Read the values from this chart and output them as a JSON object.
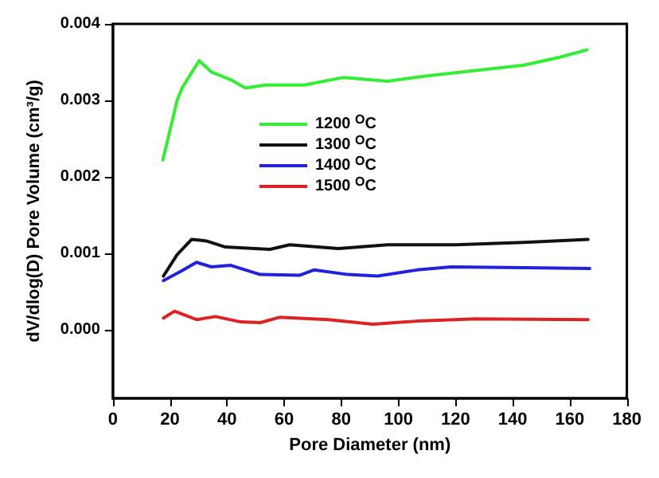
{
  "chart_data": {
    "type": "line",
    "xlabel": "Pore Diameter (nm)",
    "ylabel": "dV/dlog(D) Pore Volume (cm³/g)",
    "xlim": [
      0,
      180
    ],
    "xticks": [
      0,
      20,
      40,
      60,
      80,
      100,
      120,
      140,
      160,
      180
    ],
    "ylim": [
      -0.0009,
      0.004
    ],
    "yticks": [
      {
        "value": 0,
        "label": "0.000"
      },
      {
        "value": 0.001,
        "label": "0.001"
      },
      {
        "value": 0.002,
        "label": "0.002"
      },
      {
        "value": 0.003,
        "label": "0.003"
      },
      {
        "value": 0.004,
        "label": "0.004"
      }
    ],
    "grid": false,
    "legend": "top left",
    "marker": "none",
    "line_style": "solid",
    "series": [
      {
        "name": "1200 $^{O}$C",
        "color": "#33ee33",
        "x": [
          17.5,
          22.5,
          24.2,
          30.2,
          34.5,
          41.3,
          46.4,
          53.3,
          67,
          80.8,
          96.2,
          110,
          127,
          144,
          156,
          166
        ],
        "values": [
          0.00222,
          0.003,
          0.00316,
          0.00352,
          0.00337,
          0.00327,
          0.00316,
          0.0032,
          0.0032,
          0.0033,
          0.00325,
          0.00332,
          0.00339,
          0.00346,
          0.00356,
          0.00366
        ]
      },
      {
        "name": "1300 $^{O}$C",
        "color": "#111111",
        "x": [
          17.7,
          22.5,
          27.6,
          32.7,
          39.4,
          55,
          61.9,
          79,
          96.2,
          120,
          144,
          166.4
        ],
        "values": [
          0.0007,
          0.00098,
          0.00118,
          0.00116,
          0.00108,
          0.00105,
          0.00111,
          0.00106,
          0.00111,
          0.00111,
          0.00114,
          0.00118
        ]
      },
      {
        "name": "1400 $^{O}$C",
        "color": "#2222dd",
        "x": [
          17.7,
          24.2,
          29.3,
          34.5,
          41.3,
          51.6,
          65.3,
          70.4,
          82.4,
          92.7,
          106.5,
          118.5,
          144,
          167
        ],
        "values": [
          0.00064,
          0.00077,
          0.00088,
          0.00082,
          0.00084,
          0.00072,
          0.00071,
          0.00078,
          0.00072,
          0.0007,
          0.00078,
          0.00082,
          0.00081,
          0.0008
        ]
      },
      {
        "name": "1500 $^{O}$C",
        "color": "#dd2222",
        "x": [
          17.7,
          21.6,
          29.3,
          36,
          44.8,
          51.6,
          58.3,
          75.6,
          91,
          106.5,
          127,
          166.4
        ],
        "values": [
          0.00015,
          0.00024,
          0.00013,
          0.00017,
          0.0001,
          9e-05,
          0.00016,
          0.00013,
          7e-05,
          0.00011,
          0.00014,
          0.00013
        ]
      }
    ]
  }
}
